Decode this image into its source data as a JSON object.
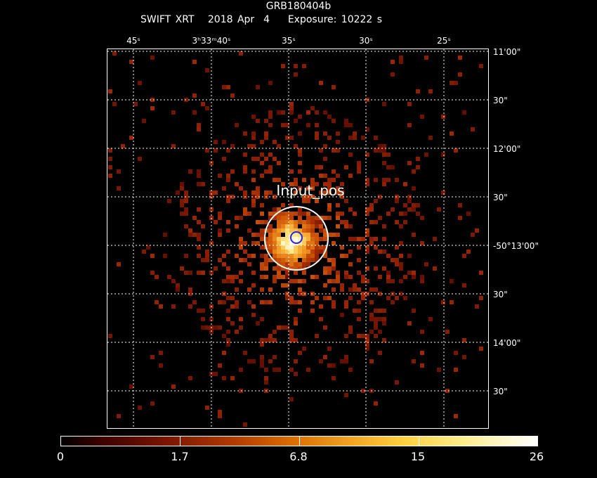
{
  "header": {
    "grb": "GRB180404b",
    "instrument": "SWIFT XRT",
    "date": "2018 Apr  4",
    "exposure": "Exposure: 10222 s"
  },
  "ra_ticks": [
    "45ˢ",
    "3ʰ33ᵐ40ˢ",
    "35ˢ",
    "30ˢ",
    "25ˢ"
  ],
  "dec_ticks": [
    "11'00\"",
    "30\"",
    "12'00\"",
    "30\"",
    "-50°13'00\"",
    "30\"",
    "14'00\"",
    "30\""
  ],
  "source_label": "Input_pos",
  "colorbar": {
    "labels": [
      "0",
      "1.7",
      "6.8",
      "15",
      "26"
    ]
  },
  "colors": {
    "background": "#000000",
    "grid": "#ffffff",
    "source_circle": "#ffffff",
    "position_circle": "#2222ff"
  }
}
